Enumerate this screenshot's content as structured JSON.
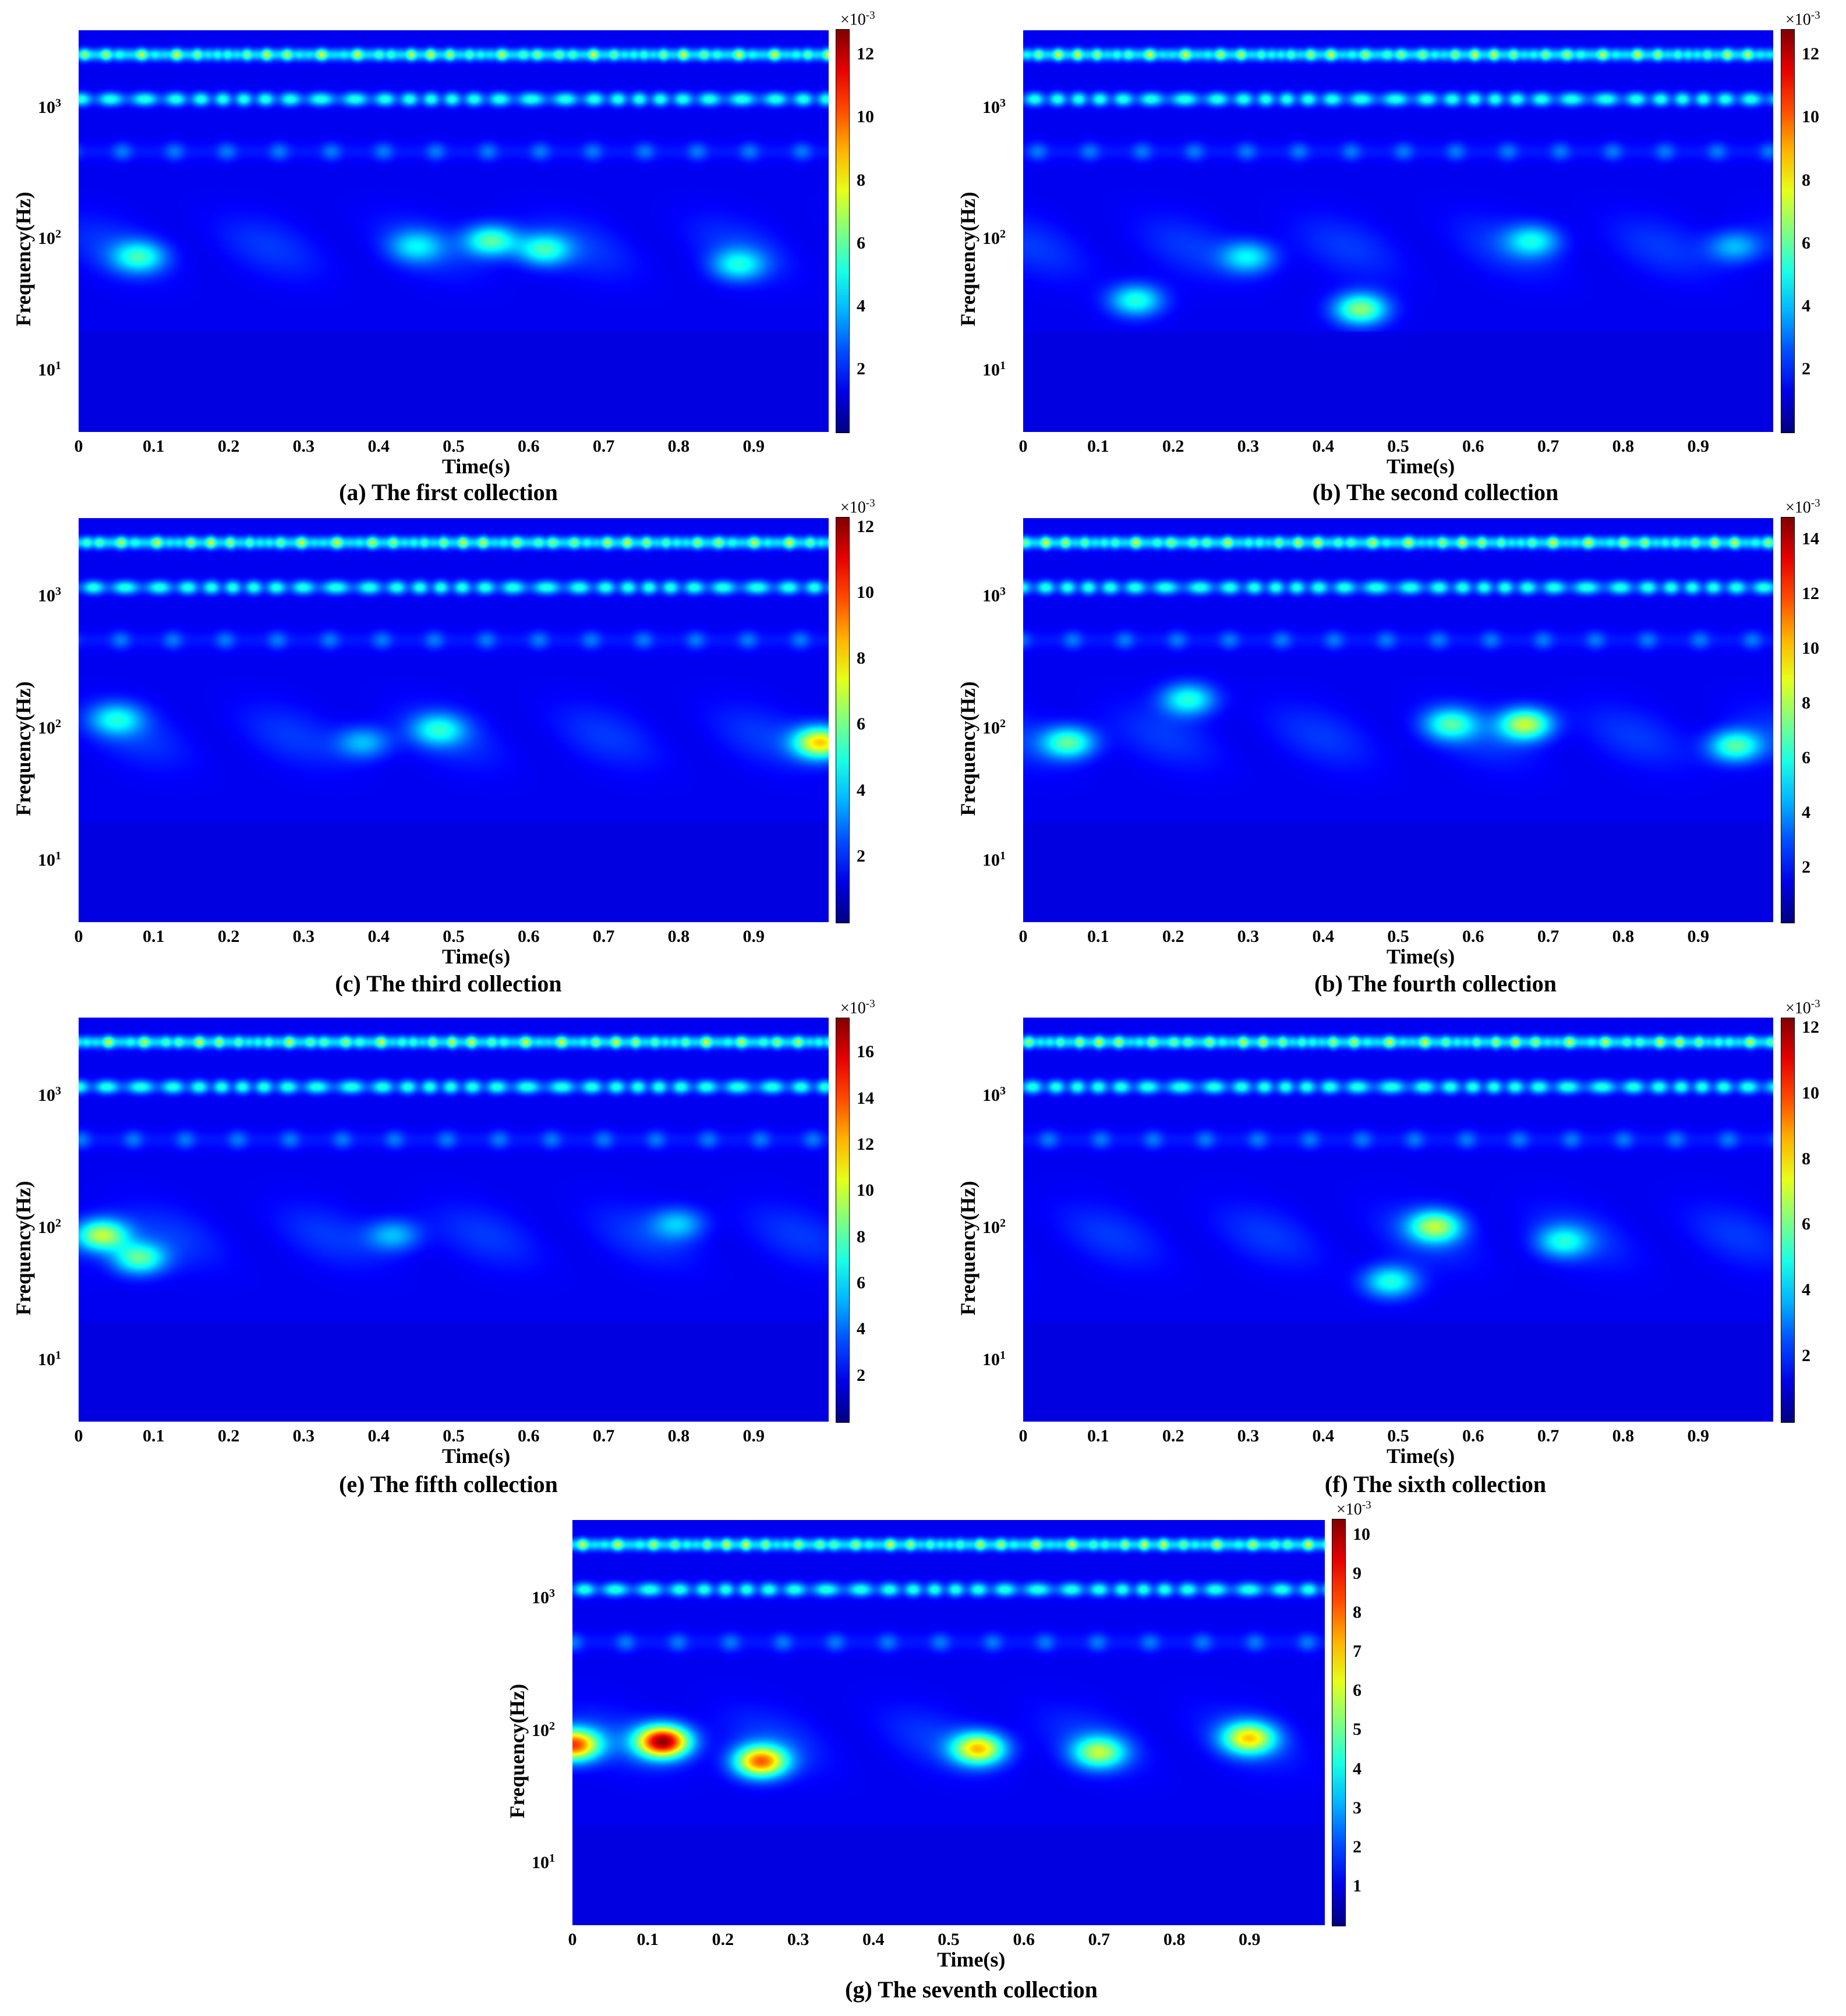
{
  "figure": {
    "panels": [
      {
        "id": "a",
        "caption": "(a) The first collection",
        "xlabel": "Time(s)",
        "ylabel": "Frequency(Hz)",
        "cbar_multiplier": "×10",
        "cbar_exponent": "-3",
        "cbar_max": 12.8,
        "cbar_ticks": [
          2,
          4,
          6,
          8,
          10,
          12
        ],
        "highlights": [
          [
            0.55,
            100,
            0.35
          ],
          [
            0.62,
            85,
            0.3
          ],
          [
            0.08,
            75,
            0.28
          ],
          [
            0.88,
            65,
            0.25
          ],
          [
            0.45,
            90,
            0.2
          ]
        ]
      },
      {
        "id": "b",
        "caption": "(b) The second collection",
        "xlabel": "Time(s)",
        "ylabel": "Frequency(Hz)",
        "cbar_multiplier": "×10",
        "cbar_exponent": "-3",
        "cbar_max": 12.8,
        "cbar_ticks": [
          2,
          4,
          6,
          8,
          10,
          12
        ],
        "highlights": [
          [
            0.45,
            30,
            0.4
          ],
          [
            0.15,
            35,
            0.3
          ],
          [
            0.3,
            75,
            0.25
          ],
          [
            0.68,
            100,
            0.25
          ],
          [
            0.95,
            90,
            0.2
          ]
        ]
      },
      {
        "id": "c",
        "caption": "(c) The third collection",
        "xlabel": "Time(s)",
        "ylabel": "Frequency(Hz)",
        "cbar_multiplier": "×10",
        "cbar_exponent": "-3",
        "cbar_max": 12.3,
        "cbar_ticks": [
          2,
          4,
          6,
          8,
          10,
          12
        ],
        "highlights": [
          [
            0.99,
            80,
            0.55
          ],
          [
            0.48,
            100,
            0.25
          ],
          [
            0.05,
            120,
            0.25
          ],
          [
            0.38,
            80,
            0.2
          ]
        ]
      },
      {
        "id": "d",
        "caption": "(b) The fourth collection",
        "xlabel": "Time(s)",
        "ylabel": "Frequency(Hz)",
        "cbar_multiplier": "×10",
        "cbar_exponent": "-3",
        "cbar_max": 14.8,
        "cbar_ticks": [
          2,
          4,
          6,
          8,
          10,
          12,
          14
        ],
        "highlights": [
          [
            0.67,
            110,
            0.45
          ],
          [
            0.57,
            110,
            0.3
          ],
          [
            0.95,
            75,
            0.35
          ],
          [
            0.06,
            80,
            0.35
          ],
          [
            0.22,
            170,
            0.3
          ]
        ]
      },
      {
        "id": "e",
        "caption": "(e) The fifth collection",
        "xlabel": "Time(s)",
        "ylabel": "Frequency(Hz)",
        "cbar_multiplier": "×10",
        "cbar_exponent": "-3",
        "cbar_max": 17.5,
        "cbar_ticks": [
          2,
          4,
          6,
          8,
          10,
          12,
          14,
          16
        ],
        "highlights": [
          [
            0.03,
            90,
            0.45
          ],
          [
            0.08,
            60,
            0.35
          ],
          [
            0.42,
            90,
            0.2
          ],
          [
            0.8,
            110,
            0.2
          ]
        ]
      },
      {
        "id": "f",
        "caption": "(f) The sixth collection",
        "xlabel": "Time(s)",
        "ylabel": "Frequency(Hz)",
        "cbar_multiplier": "×10",
        "cbar_exponent": "-3",
        "cbar_max": 12.3,
        "cbar_ticks": [
          2,
          4,
          6,
          8,
          10,
          12
        ],
        "highlights": [
          [
            0.55,
            105,
            0.4
          ],
          [
            0.49,
            40,
            0.3
          ],
          [
            0.72,
            80,
            0.25
          ]
        ]
      },
      {
        "id": "g",
        "caption": "(g) The seventh collection",
        "xlabel": "Time(s)",
        "ylabel": "Frequency(Hz)",
        "cbar_multiplier": "×10",
        "cbar_exponent": "-3",
        "cbar_max": 10.4,
        "cbar_ticks": [
          1,
          2,
          3,
          4,
          5,
          6,
          7,
          8,
          9,
          10
        ],
        "highlights": [
          [
            0.12,
            85,
            0.85
          ],
          [
            0.25,
            60,
            0.65
          ],
          [
            0.0,
            80,
            0.7
          ],
          [
            0.54,
            75,
            0.55
          ],
          [
            0.9,
            90,
            0.5
          ],
          [
            0.7,
            70,
            0.4
          ]
        ]
      }
    ]
  },
  "chart_data": [
    {
      "type": "heatmap",
      "title": "(a) The first collection",
      "xlabel": "Time(s)",
      "ylabel": "Frequency(Hz)",
      "xlim": [
        0,
        1
      ],
      "xticks": [
        0,
        0.1,
        0.2,
        0.3,
        0.4,
        0.5,
        0.6,
        0.7,
        0.8,
        0.9
      ],
      "yscale": "log",
      "ylim": [
        3.5,
        4000
      ],
      "yticks": [
        "10^1",
        "10^2",
        "10^3"
      ],
      "colorbar": {
        "label": "×10^-3",
        "ticks": [
          2,
          4,
          6,
          8,
          10,
          12
        ]
      }
    },
    {
      "type": "heatmap",
      "title": "(b) The second collection",
      "xlabel": "Time(s)",
      "ylabel": "Frequency(Hz)",
      "xlim": [
        0,
        1
      ],
      "xticks": [
        0,
        0.1,
        0.2,
        0.3,
        0.4,
        0.5,
        0.6,
        0.7,
        0.8,
        0.9
      ],
      "yscale": "log",
      "ylim": [
        3.5,
        4000
      ],
      "yticks": [
        "10^1",
        "10^2",
        "10^3"
      ],
      "colorbar": {
        "label": "×10^-3",
        "ticks": [
          2,
          4,
          6,
          8,
          10,
          12
        ]
      }
    },
    {
      "type": "heatmap",
      "title": "(c) The third collection",
      "xlabel": "Time(s)",
      "ylabel": "Frequency(Hz)",
      "xlim": [
        0,
        1
      ],
      "xticks": [
        0,
        0.1,
        0.2,
        0.3,
        0.4,
        0.5,
        0.6,
        0.7,
        0.8,
        0.9
      ],
      "yscale": "log",
      "ylim": [
        3.5,
        4000
      ],
      "yticks": [
        "10^1",
        "10^2",
        "10^3"
      ],
      "colorbar": {
        "label": "×10^-3",
        "ticks": [
          2,
          4,
          6,
          8,
          10,
          12
        ]
      }
    },
    {
      "type": "heatmap",
      "title": "(b) The fourth collection",
      "xlabel": "Time(s)",
      "ylabel": "Frequency(Hz)",
      "xlim": [
        0,
        1
      ],
      "xticks": [
        0,
        0.1,
        0.2,
        0.3,
        0.4,
        0.5,
        0.6,
        0.7,
        0.8,
        0.9
      ],
      "yscale": "log",
      "ylim": [
        3.5,
        4000
      ],
      "yticks": [
        "10^1",
        "10^2",
        "10^3"
      ],
      "colorbar": {
        "label": "×10^-3",
        "ticks": [
          2,
          4,
          6,
          8,
          10,
          12,
          14
        ]
      }
    },
    {
      "type": "heatmap",
      "title": "(e) The fifth collection",
      "xlabel": "Time(s)",
      "ylabel": "Frequency(Hz)",
      "xlim": [
        0,
        1
      ],
      "xticks": [
        0,
        0.1,
        0.2,
        0.3,
        0.4,
        0.5,
        0.6,
        0.7,
        0.8,
        0.9
      ],
      "yscale": "log",
      "ylim": [
        3.5,
        4000
      ],
      "yticks": [
        "10^1",
        "10^2",
        "10^3"
      ],
      "colorbar": {
        "label": "×10^-3",
        "ticks": [
          2,
          4,
          6,
          8,
          10,
          12,
          14,
          16
        ]
      }
    },
    {
      "type": "heatmap",
      "title": "(f) The sixth collection",
      "xlabel": "Time(s)",
      "ylabel": "Frequency(Hz)",
      "xlim": [
        0,
        1
      ],
      "xticks": [
        0,
        0.1,
        0.2,
        0.3,
        0.4,
        0.5,
        0.6,
        0.7,
        0.8,
        0.9
      ],
      "yscale": "log",
      "ylim": [
        3.5,
        4000
      ],
      "yticks": [
        "10^1",
        "10^2",
        "10^3"
      ],
      "colorbar": {
        "label": "×10^-3",
        "ticks": [
          2,
          4,
          6,
          8,
          10,
          12
        ]
      }
    },
    {
      "type": "heatmap",
      "title": "(g) The seventh collection",
      "xlabel": "Time(s)",
      "ylabel": "Frequency(Hz)",
      "xlim": [
        0,
        1
      ],
      "xticks": [
        0,
        0.1,
        0.2,
        0.3,
        0.4,
        0.5,
        0.6,
        0.7,
        0.8,
        0.9
      ],
      "yscale": "log",
      "ylim": [
        3.5,
        4000
      ],
      "yticks": [
        "10^1",
        "10^2",
        "10^3"
      ],
      "colorbar": {
        "label": "×10^-3",
        "ticks": [
          1,
          2,
          3,
          4,
          5,
          6,
          7,
          8,
          9,
          10
        ]
      }
    }
  ],
  "axes": {
    "xticks": [
      "0",
      "0.1",
      "0.2",
      "0.3",
      "0.4",
      "0.5",
      "0.6",
      "0.7",
      "0.8",
      "0.9"
    ],
    "yticks": [
      {
        "base": "10",
        "exp": "1",
        "value": 10
      },
      {
        "base": "10",
        "exp": "2",
        "value": 100
      },
      {
        "base": "10",
        "exp": "3",
        "value": 1000
      }
    ],
    "fmin": 3.5,
    "fmax": 4000
  },
  "colormap": "jet"
}
